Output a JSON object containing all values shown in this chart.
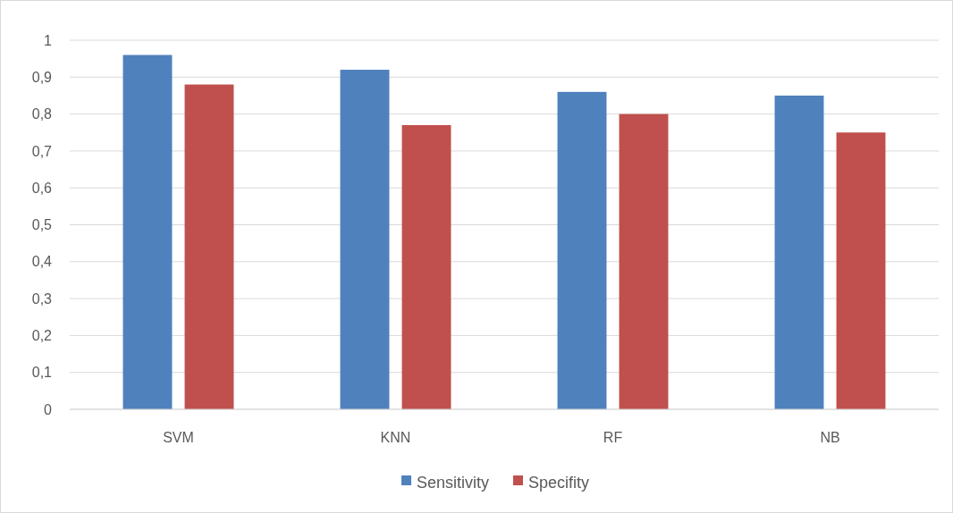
{
  "chart_data": {
    "type": "bar",
    "categories": [
      "SVM",
      "KNN",
      "RF",
      "NB"
    ],
    "series": [
      {
        "name": "Sensitivity",
        "color": "#4f81bd",
        "values": [
          0.96,
          0.92,
          0.86,
          0.85
        ]
      },
      {
        "name": "Specifity",
        "color": "#c0504d",
        "values": [
          0.88,
          0.77,
          0.8,
          0.75
        ]
      }
    ],
    "ylim": [
      0,
      1
    ],
    "yticks": [
      0,
      {
        "value": 0.1,
        "label": "0,1"
      },
      {
        "value": 0.2,
        "label": "0,2"
      },
      {
        "value": 0.3,
        "label": "0,3"
      },
      {
        "value": 0.4,
        "label": "0,4"
      },
      {
        "value": 0.5,
        "label": "0,5"
      },
      {
        "value": 0.6,
        "label": "0,6"
      },
      {
        "value": 0.7,
        "label": "0,7"
      },
      {
        "value": 0.8,
        "label": "0,8"
      },
      {
        "value": 0.9,
        "label": "0,9"
      },
      1
    ],
    "grid": "y",
    "legend": "bottom"
  }
}
